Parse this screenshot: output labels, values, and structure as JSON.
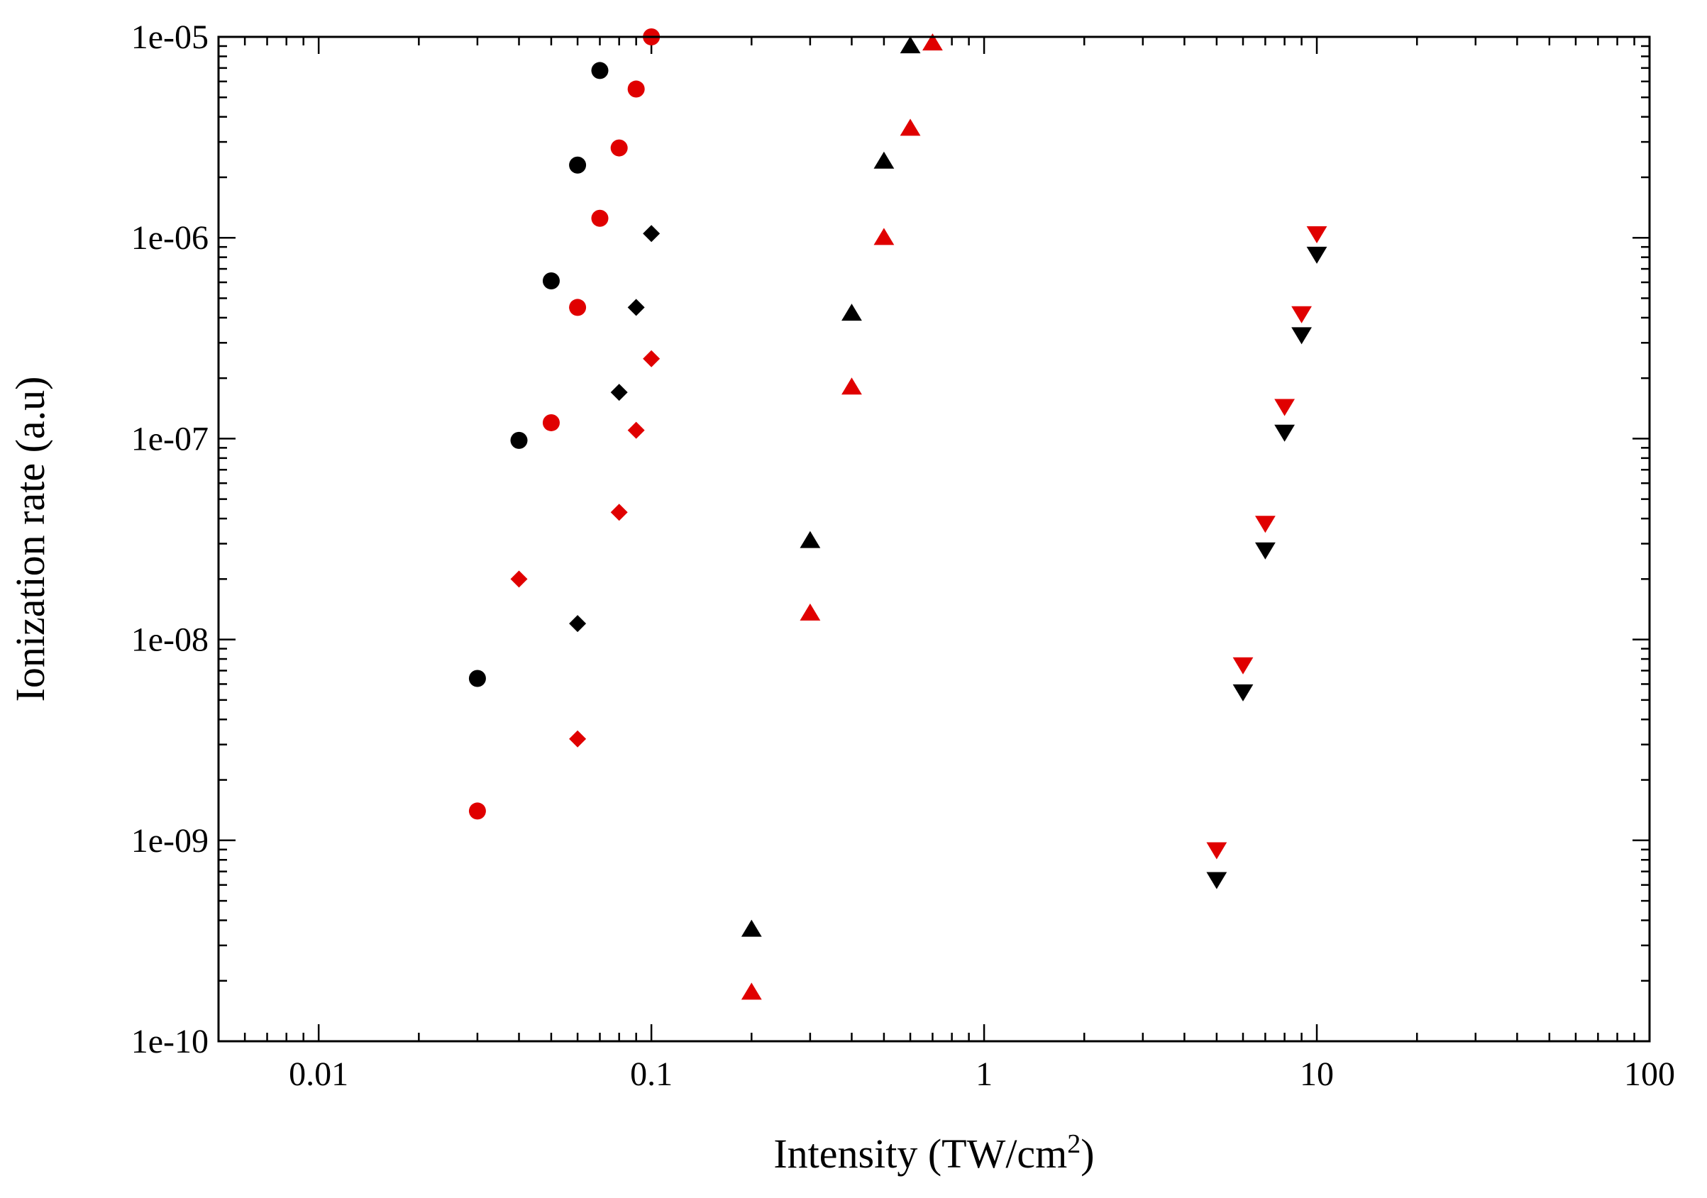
{
  "chart_data": {
    "type": "scatter",
    "title": "",
    "xlabel": "Intensity (TW/cm",
    "xlabel_sup": "2",
    "xlabel_end": ")",
    "ylabel": "Ionization rate (a.u)",
    "xscale": "log",
    "yscale": "log",
    "xlim": [
      0.005,
      100
    ],
    "ylim": [
      1e-10,
      1e-05
    ],
    "x_ticks": [
      {
        "value": 0.01,
        "label": "0.01"
      },
      {
        "value": 0.1,
        "label": "0.1"
      },
      {
        "value": 1,
        "label": "1"
      },
      {
        "value": 10,
        "label": "10"
      },
      {
        "value": 100,
        "label": "100"
      }
    ],
    "y_ticks": [
      {
        "value": 1e-10,
        "label": "1e-10"
      },
      {
        "value": 1e-09,
        "label": "1e-09"
      },
      {
        "value": 1e-08,
        "label": "1e-08"
      },
      {
        "value": 1e-07,
        "label": "1e-07"
      },
      {
        "value": 1e-06,
        "label": "1e-06"
      },
      {
        "value": 1e-05,
        "label": "1e-05"
      }
    ],
    "legend": "none",
    "grid": false,
    "series": [
      {
        "name": "black-circles",
        "marker": "circle",
        "color": "#000000",
        "x": [
          0.03,
          0.04,
          0.05,
          0.06,
          0.07
        ],
        "y": [
          6.4e-09,
          9.8e-08,
          6.1e-07,
          2.3e-06,
          6.8e-06
        ]
      },
      {
        "name": "red-circles",
        "marker": "circle",
        "color": "#e00000",
        "x": [
          0.03,
          0.05,
          0.06,
          0.07,
          0.08,
          0.09,
          0.1
        ],
        "y": [
          1.4e-09,
          1.2e-07,
          4.5e-07,
          1.25e-06,
          2.8e-06,
          5.5e-06,
          1e-05
        ]
      },
      {
        "name": "black-diamonds",
        "marker": "diamond",
        "color": "#000000",
        "x": [
          0.06,
          0.08,
          0.09,
          0.1
        ],
        "y": [
          1.2e-08,
          1.7e-07,
          4.5e-07,
          1.05e-06
        ]
      },
      {
        "name": "red-diamonds",
        "marker": "diamond",
        "color": "#e00000",
        "x": [
          0.04,
          0.06,
          0.08,
          0.09,
          0.1
        ],
        "y": [
          2e-08,
          3.2e-09,
          4.3e-08,
          1.1e-07,
          2.5e-07
        ]
      },
      {
        "name": "black-up-triangles",
        "marker": "triangle-up",
        "color": "#000000",
        "x": [
          0.2,
          0.3,
          0.4,
          0.5,
          0.6
        ],
        "y": [
          3.6e-10,
          3.1e-08,
          4.2e-07,
          2.4e-06,
          9e-06
        ]
      },
      {
        "name": "red-up-triangles",
        "marker": "triangle-up",
        "color": "#e00000",
        "x": [
          0.2,
          0.3,
          0.4,
          0.5,
          0.6,
          0.7
        ],
        "y": [
          1.75e-10,
          1.35e-08,
          1.8e-07,
          1e-06,
          3.5e-06,
          9.3e-06
        ]
      },
      {
        "name": "black-down-triangles",
        "marker": "triangle-down",
        "color": "#000000",
        "x": [
          5,
          6,
          7,
          8,
          9,
          10
        ],
        "y": [
          6.4e-10,
          5.5e-09,
          2.8e-08,
          1.08e-07,
          3.3e-07,
          8.3e-07
        ]
      },
      {
        "name": "red-down-triangles",
        "marker": "triangle-down",
        "color": "#e00000",
        "x": [
          5,
          6,
          7,
          8,
          9,
          10
        ],
        "y": [
          9e-10,
          7.5e-09,
          3.8e-08,
          1.45e-07,
          4.2e-07,
          1.05e-06
        ]
      }
    ]
  }
}
